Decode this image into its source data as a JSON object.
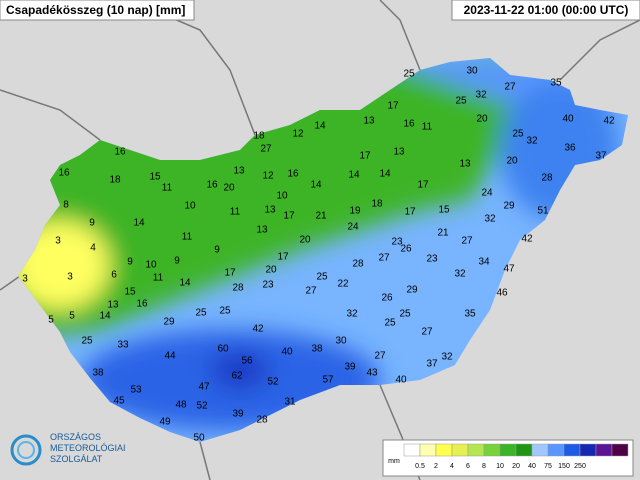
{
  "header": {
    "title": "Csapadékösszeg (10 nap) [mm]",
    "timestamp": "2023-11-22 01:00 (00:00 UTC)"
  },
  "stations": [
    16,
    16,
    18,
    15,
    11,
    8,
    16,
    20,
    13,
    18,
    12,
    14,
    27,
    13,
    17,
    16,
    11,
    25,
    30,
    25,
    32,
    27,
    35,
    40,
    42,
    20,
    25,
    32,
    36,
    37,
    17,
    13,
    20,
    28,
    13,
    12,
    10,
    16,
    14,
    14,
    14,
    17,
    18,
    15,
    24,
    29,
    51,
    32,
    17,
    19,
    21,
    24,
    17,
    13,
    11,
    10,
    9,
    14,
    11,
    13,
    20,
    21,
    27,
    42,
    23,
    26,
    23,
    3,
    4,
    9,
    17,
    20,
    28,
    27,
    34,
    47,
    32,
    9,
    10,
    9,
    17,
    3,
    6,
    11,
    14,
    25,
    22,
    28,
    23,
    27,
    26,
    29,
    46,
    3,
    13,
    16,
    15,
    25,
    25,
    35,
    32,
    25,
    25,
    27,
    5,
    5,
    14,
    29,
    42,
    25,
    33,
    30,
    60,
    44,
    40,
    38,
    56,
    27,
    32,
    37,
    39,
    43,
    38,
    62,
    52,
    57,
    40,
    47,
    53,
    45,
    48,
    52,
    39,
    31,
    49,
    28,
    50
  ],
  "legend": {
    "unit": "mm",
    "ticks": [
      0.5,
      2,
      4,
      6,
      8,
      10,
      20,
      40,
      75,
      150,
      250
    ],
    "colors": [
      "#ffffff",
      "#ffffb0",
      "#ffff50",
      "#e6f050",
      "#b4e650",
      "#78d23c",
      "#3cb428",
      "#1e9614",
      "#a0c8ff",
      "#5a96ff",
      "#1e5ae6",
      "#1428b4",
      "#5a1496",
      "#500046"
    ]
  },
  "logo": {
    "line1": "ORSZÁGOS",
    "line2": "METEOROLÓGIAI",
    "line3": "SZOLGÁLAT"
  }
}
